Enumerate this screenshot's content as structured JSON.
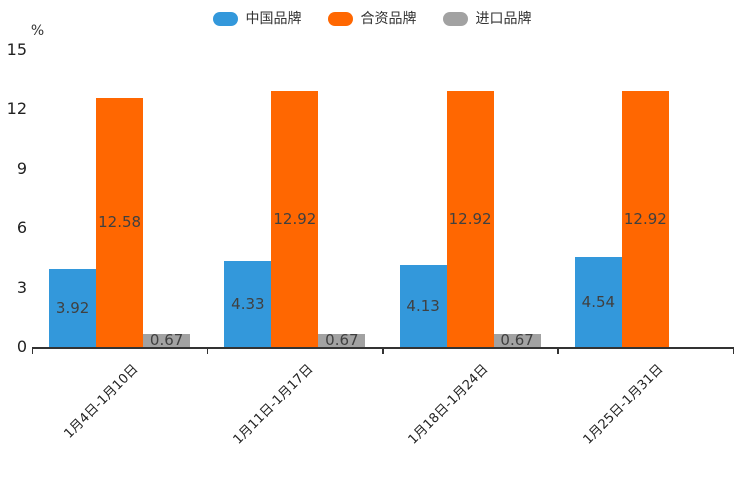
{
  "chart_data": {
    "type": "bar",
    "categories": [
      "1月4日-1月10日",
      "1月11日-1月17日",
      "1月18日-1月24日",
      "1月25日-1月31日"
    ],
    "series": [
      {
        "name": "中国品牌",
        "color": "#3398db",
        "values": [
          3.92,
          4.33,
          4.13,
          4.54
        ]
      },
      {
        "name": "合资品牌",
        "color": "#ff6701",
        "values": [
          12.58,
          12.92,
          12.92,
          12.92
        ]
      },
      {
        "name": "进口品牌",
        "color": "#a2a2a2",
        "values": [
          0.67,
          0.67,
          0.67,
          null
        ]
      }
    ],
    "ylabel": "%",
    "yticks": [
      0,
      3,
      6,
      9,
      12,
      15
    ],
    "ylim": [
      0,
      15
    ],
    "grid": false,
    "legend_position": "top",
    "value_labels": "inside-center",
    "colors": {
      "axis": "#333333",
      "bar_label_text": "#404040",
      "tick_label_text": "#222222"
    }
  }
}
